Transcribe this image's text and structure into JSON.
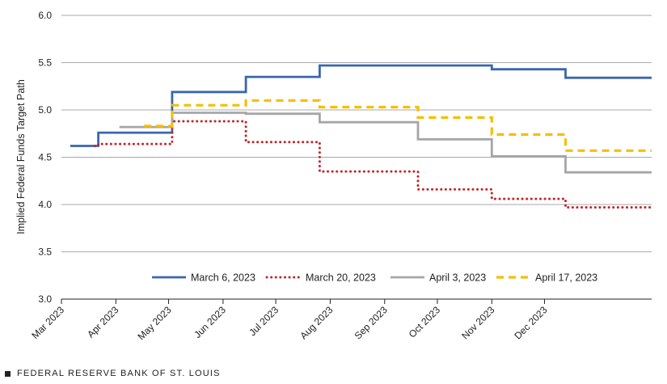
{
  "chart_data": {
    "type": "line",
    "ylabel": "Implied Federal Funds Target Path",
    "ylim": [
      3.0,
      6.0
    ],
    "yticks": [
      "3.0",
      "3.5",
      "4.0",
      "4.5",
      "5.0",
      "5.5",
      "6.0"
    ],
    "ytick_values": [
      3.0,
      3.5,
      4.0,
      4.5,
      5.0,
      5.5,
      6.0
    ],
    "xlim": [
      "2023-03-01",
      "2024-01-31"
    ],
    "xticks": [
      "Mar 2023",
      "Apr 2023",
      "May 2023",
      "Jun 2023",
      "Jul 2023",
      "Aug 2023",
      "Sep 2023",
      "Oct 2023",
      "Nov 2023",
      "Dec 2023"
    ],
    "xtick_dates": [
      "2023-03-01",
      "2023-04-01",
      "2023-05-01",
      "2023-06-01",
      "2023-07-01",
      "2023-08-01",
      "2023-09-01",
      "2023-10-01",
      "2023-11-01",
      "2023-12-01"
    ],
    "grid": true,
    "legend_position": "bottom",
    "series": [
      {
        "name": "March 6, 2023",
        "color": "#3a66b0",
        "style": "solid",
        "points": [
          {
            "x": "2023-03-06",
            "y": 4.62
          },
          {
            "x": "2023-03-22",
            "y": 4.76
          },
          {
            "x": "2023-05-03",
            "y": 5.19
          },
          {
            "x": "2023-06-14",
            "y": 5.35
          },
          {
            "x": "2023-07-26",
            "y": 5.47
          },
          {
            "x": "2023-11-01",
            "y": 5.43
          },
          {
            "x": "2023-12-13",
            "y": 5.34
          }
        ],
        "end": "2024-01-31"
      },
      {
        "name": "March 20, 2023",
        "color": "#c1272d",
        "style": "dotted",
        "points": [
          {
            "x": "2023-03-20",
            "y": 4.62
          },
          {
            "x": "2023-03-22",
            "y": 4.64
          },
          {
            "x": "2023-05-03",
            "y": 4.88
          },
          {
            "x": "2023-06-14",
            "y": 4.66
          },
          {
            "x": "2023-07-26",
            "y": 4.35
          },
          {
            "x": "2023-09-20",
            "y": 4.16
          },
          {
            "x": "2023-11-01",
            "y": 4.06
          },
          {
            "x": "2023-12-13",
            "y": 3.97
          }
        ],
        "end": "2024-01-31"
      },
      {
        "name": "April 3, 2023",
        "color": "#a6a6a6",
        "style": "solid",
        "points": [
          {
            "x": "2023-04-03",
            "y": 4.82
          },
          {
            "x": "2023-05-03",
            "y": 4.97
          },
          {
            "x": "2023-06-14",
            "y": 4.96
          },
          {
            "x": "2023-07-26",
            "y": 4.87
          },
          {
            "x": "2023-09-20",
            "y": 4.69
          },
          {
            "x": "2023-11-01",
            "y": 4.51
          },
          {
            "x": "2023-12-13",
            "y": 4.34
          }
        ],
        "end": "2024-01-31"
      },
      {
        "name": "April 17, 2023",
        "color": "#f5bf00",
        "style": "dashed",
        "points": [
          {
            "x": "2023-04-17",
            "y": 4.83
          },
          {
            "x": "2023-05-03",
            "y": 5.05
          },
          {
            "x": "2023-06-14",
            "y": 5.1
          },
          {
            "x": "2023-07-26",
            "y": 5.03
          },
          {
            "x": "2023-09-20",
            "y": 4.92
          },
          {
            "x": "2023-11-01",
            "y": 4.74
          },
          {
            "x": "2023-12-13",
            "y": 4.57
          }
        ],
        "end": "2024-01-31"
      }
    ]
  },
  "footer": {
    "source": "FEDERAL RESERVE BANK OF ST. LOUIS"
  }
}
